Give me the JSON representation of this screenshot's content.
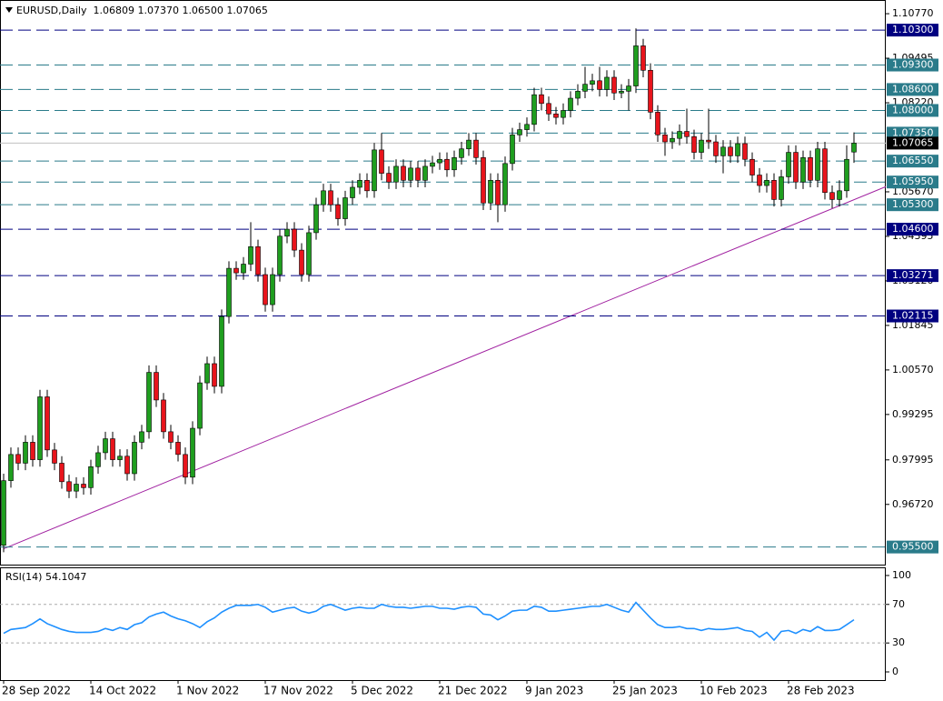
{
  "chart_data": [
    {
      "type": "candlestick",
      "title": "EURUSD,Daily  1.06809 1.07370 1.06500 1.07065",
      "categories": [
        "28 Sep 2022",
        null,
        null,
        null,
        null,
        null,
        null,
        null,
        null,
        null,
        null,
        null,
        "14 Oct 2022",
        null,
        null,
        null,
        null,
        null,
        null,
        null,
        null,
        null,
        null,
        null,
        "1 Nov 2022",
        null,
        null,
        null,
        null,
        null,
        null,
        null,
        null,
        null,
        null,
        null,
        "17 Nov 2022",
        null,
        null,
        null,
        null,
        null,
        null,
        null,
        null,
        null,
        null,
        null,
        "5 Dec 2022",
        null,
        null,
        null,
        null,
        null,
        null,
        null,
        null,
        null,
        null,
        null,
        "21 Dec 2022",
        null,
        null,
        null,
        null,
        null,
        null,
        null,
        null,
        null,
        null,
        null,
        "9 Jan 2023",
        null,
        null,
        null,
        null,
        null,
        null,
        null,
        null,
        null,
        null,
        null,
        "25 Jan 2023",
        null,
        null,
        null,
        null,
        null,
        null,
        null,
        null,
        null,
        null,
        null,
        "10 Feb 2023",
        null,
        null,
        null,
        null,
        null,
        null,
        null,
        null,
        null,
        null,
        null,
        "28 Feb 2023",
        null,
        null,
        null,
        null,
        null,
        null,
        null,
        null,
        null
      ],
      "open": [
        0.9555,
        0.974,
        0.9815,
        0.979,
        0.985,
        0.98,
        0.998,
        0.9828,
        0.979,
        0.9737,
        0.971,
        0.973,
        0.972,
        0.978,
        0.982,
        0.986,
        0.98,
        0.981,
        0.976,
        0.985,
        0.988,
        1.005,
        0.9971,
        0.988,
        0.985,
        0.9815,
        0.975,
        0.989,
        1.002,
        1.0075,
        1.001,
        1.021,
        1.0348,
        1.0335,
        1.036,
        1.041,
        1.033,
        1.0244,
        1.033,
        1.044,
        1.046,
        1.04,
        1.033,
        1.045,
        1.053,
        1.057,
        1.053,
        1.049,
        1.055,
        1.058,
        1.06,
        1.057,
        1.0687,
        1.062,
        1.0595,
        1.064,
        1.06,
        1.0635,
        1.06,
        1.064,
        1.065,
        1.066,
        1.063,
        1.0665,
        1.069,
        1.0715,
        1.0665,
        1.0535,
        1.06,
        1.053,
        1.0648,
        1.073,
        1.0745,
        1.076,
        1.0845,
        1.082,
        1.079,
        1.078,
        1.08,
        1.0835,
        1.0855,
        1.0875,
        1.0885,
        1.086,
        1.0895,
        1.085,
        1.0855,
        1.087,
        1.0985,
        1.0915,
        1.0795,
        1.073,
        1.071,
        1.072,
        1.074,
        1.0725,
        1.068,
        1.0715,
        1.071,
        1.067,
        1.0695,
        1.067,
        1.0705,
        1.066,
        1.0615,
        1.0585,
        1.06,
        1.0545,
        1.061,
        1.068,
        1.0595,
        1.0665,
        1.06,
        1.069,
        1.0565,
        1.0545,
        1.057,
        1.06809
      ],
      "high": [
        0.976,
        0.9835,
        0.9835,
        0.987,
        0.987,
        1.0,
        1.0,
        0.9848,
        0.981,
        0.9757,
        0.975,
        0.975,
        0.98,
        0.984,
        0.988,
        0.988,
        0.983,
        0.983,
        0.987,
        0.99,
        1.007,
        1.007,
        0.9991,
        0.99,
        0.987,
        0.9835,
        0.991,
        1.004,
        1.0095,
        1.0095,
        1.023,
        1.0368,
        1.0368,
        1.038,
        1.048,
        1.043,
        1.035,
        1.035,
        1.046,
        1.048,
        1.048,
        1.042,
        1.047,
        1.055,
        1.059,
        1.059,
        1.055,
        1.057,
        1.06,
        1.062,
        1.062,
        1.0707,
        1.0735,
        1.064,
        1.066,
        1.066,
        1.0655,
        1.0655,
        1.066,
        1.067,
        1.068,
        1.068,
        1.0685,
        1.071,
        1.0735,
        1.0735,
        1.0685,
        1.062,
        1.062,
        1.0668,
        1.075,
        1.0765,
        1.078,
        1.0865,
        1.0865,
        1.084,
        1.081,
        1.082,
        1.0855,
        1.0875,
        1.0925,
        1.0905,
        1.0925,
        1.0915,
        1.0915,
        1.0875,
        1.089,
        1.1035,
        1.1005,
        1.0935,
        1.0815,
        1.075,
        1.074,
        1.076,
        1.0805,
        1.0745,
        1.0735,
        1.0805,
        1.073,
        1.0715,
        1.0715,
        1.0725,
        1.0725,
        1.068,
        1.0635,
        1.062,
        1.062,
        1.063,
        1.07,
        1.07,
        1.0685,
        1.0685,
        1.071,
        1.071,
        1.0585,
        1.06,
        1.07,
        1.0737
      ],
      "low": [
        0.9535,
        0.972,
        0.977,
        0.977,
        0.978,
        0.978,
        0.9808,
        0.977,
        0.9717,
        0.969,
        0.969,
        0.97,
        0.97,
        0.976,
        0.98,
        0.978,
        0.978,
        0.974,
        0.974,
        0.983,
        0.986,
        0.9951,
        0.986,
        0.983,
        0.9795,
        0.973,
        0.973,
        0.987,
        1.0,
        0.999,
        0.999,
        1.019,
        1.0315,
        1.0315,
        1.034,
        1.031,
        1.0224,
        1.0224,
        1.031,
        1.042,
        1.038,
        1.031,
        1.031,
        1.043,
        1.051,
        1.051,
        1.047,
        1.047,
        1.053,
        1.056,
        1.055,
        1.055,
        1.06,
        1.0575,
        1.0575,
        1.058,
        1.058,
        1.058,
        1.058,
        1.062,
        1.063,
        1.061,
        1.061,
        1.0645,
        1.067,
        1.0645,
        1.0515,
        1.0515,
        1.048,
        1.051,
        1.0628,
        1.071,
        1.0725,
        1.074,
        1.08,
        1.077,
        1.076,
        1.076,
        1.078,
        1.0815,
        1.0835,
        1.0855,
        1.084,
        1.084,
        1.083,
        1.0835,
        1.08,
        1.085,
        1.0895,
        1.0775,
        1.071,
        1.067,
        1.069,
        1.07,
        1.0705,
        1.066,
        1.066,
        1.069,
        1.065,
        1.062,
        1.065,
        1.065,
        1.064,
        1.0595,
        1.0565,
        1.0565,
        1.0525,
        1.0525,
        1.059,
        1.0575,
        1.0575,
        1.058,
        1.058,
        1.0545,
        1.052,
        1.0525,
        1.055,
        1.065
      ],
      "close": [
        0.974,
        0.9815,
        0.979,
        0.985,
        0.98,
        0.998,
        0.9828,
        0.979,
        0.9737,
        0.971,
        0.973,
        0.972,
        0.978,
        0.982,
        0.986,
        0.98,
        0.981,
        0.976,
        0.985,
        0.988,
        1.005,
        0.9971,
        0.988,
        0.985,
        0.9815,
        0.975,
        0.989,
        1.002,
        1.0075,
        1.001,
        1.021,
        1.0348,
        1.0335,
        1.036,
        1.041,
        1.033,
        1.0244,
        1.033,
        1.044,
        1.046,
        1.04,
        1.033,
        1.045,
        1.053,
        1.057,
        1.053,
        1.049,
        1.055,
        1.058,
        1.06,
        1.057,
        1.0687,
        1.062,
        1.0595,
        1.064,
        1.06,
        1.0635,
        1.06,
        1.064,
        1.065,
        1.066,
        1.063,
        1.0665,
        1.069,
        1.0715,
        1.0665,
        1.0535,
        1.06,
        1.053,
        1.0648,
        1.073,
        1.0745,
        1.076,
        1.0845,
        1.082,
        1.079,
        1.078,
        1.08,
        1.0835,
        1.0855,
        1.0875,
        1.0885,
        1.086,
        1.0895,
        1.085,
        1.0855,
        1.087,
        1.0985,
        1.0915,
        1.0795,
        1.073,
        1.071,
        1.072,
        1.074,
        1.0725,
        1.068,
        1.0715,
        1.071,
        1.067,
        1.0695,
        1.067,
        1.0705,
        1.066,
        1.0615,
        1.0585,
        1.06,
        1.0545,
        1.061,
        1.068,
        1.0595,
        1.0665,
        1.06,
        1.069,
        1.0565,
        1.0545,
        1.057,
        1.066,
        1.07065
      ],
      "up_color": "#1f9e1f",
      "down_color": "#e8141c",
      "ylim": [
        0.9497,
        1.1111
      ],
      "yticks": [
        {
          "value": 1.1077,
          "label": "1.10770"
        },
        1.09495,
        {
          "value": 1.0822,
          "label": "1.08220"
        },
        {
          "value": 1.0567,
          "label": "1.05670"
        },
        1.04395,
        {
          "value": 1.0312,
          "label": "1.03120"
        },
        1.01845,
        {
          "value": 1.0057,
          "label": "1.00570"
        },
        0.99295,
        0.97995,
        {
          "value": 0.9672,
          "label": "0.96720"
        }
      ],
      "levels": [
        {
          "value": 1.103,
          "label": "1.10300",
          "color": "#000080"
        },
        {
          "value": 1.093,
          "label": "1.09300",
          "color": "#2a7b8a"
        },
        {
          "value": 1.086,
          "label": "1.08600",
          "color": "#2a7b8a"
        },
        {
          "value": 1.08,
          "label": "1.08000",
          "color": "#2a7b8a"
        },
        {
          "value": 1.0735,
          "label": "1.07350",
          "color": "#2a7b8a"
        },
        {
          "value": 1.0655,
          "label": "1.06550",
          "color": "#2a7b8a"
        },
        {
          "value": 1.0595,
          "label": "1.05950",
          "color": "#2a7b8a"
        },
        {
          "value": 1.053,
          "label": "1.05300",
          "color": "#2a7b8a"
        },
        {
          "value": 1.046,
          "label": "1.04600",
          "color": "#000080"
        },
        {
          "value": 1.03271,
          "label": "1.03271",
          "color": "#000080"
        },
        {
          "value": 1.02115,
          "label": "1.02115",
          "color": "#000080"
        },
        {
          "value": 0.955,
          "label": "0.95500",
          "color": "#2a7b8a"
        }
      ],
      "last_price": 1.07065,
      "trendline": {
        "x": [
          0,
          121.4
        ],
        "y": [
          0.9545,
          1.0582
        ],
        "color": "#a020a0"
      }
    },
    {
      "type": "line",
      "title": "RSI(14) 54.1047",
      "color": "#1e90ff",
      "values": [
        40,
        44,
        45,
        46,
        50,
        55,
        50,
        47,
        44,
        42,
        41,
        41,
        41,
        42,
        45,
        43,
        46,
        44,
        49,
        51,
        57,
        60,
        62,
        58,
        55,
        53,
        50,
        46,
        52,
        56,
        62,
        66,
        69,
        69,
        69,
        70,
        67,
        62,
        64,
        66,
        67,
        63,
        61,
        63,
        68,
        70,
        67,
        64,
        66,
        67,
        66,
        66,
        70,
        68,
        67,
        67,
        66,
        67,
        68,
        68,
        66,
        66,
        65,
        67,
        68,
        67,
        60,
        59,
        54,
        58,
        63,
        64,
        64,
        68,
        67,
        63,
        63,
        64,
        65,
        66,
        67,
        68,
        68,
        70,
        67,
        64,
        62,
        72,
        64,
        56,
        49,
        46,
        46,
        47,
        45,
        45,
        43,
        45,
        44,
        44,
        45,
        46,
        43,
        42,
        36,
        41,
        33,
        42,
        43,
        40,
        44,
        42,
        47,
        43,
        43,
        44,
        49,
        54.1047
      ],
      "ylim": [
        -8.5,
        107.5
      ],
      "yticks": [
        0,
        30,
        70,
        100
      ],
      "levels": [
        30,
        70
      ]
    }
  ]
}
